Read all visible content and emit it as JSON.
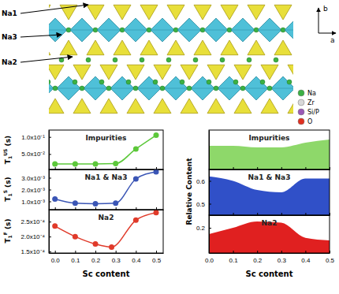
{
  "structure": {
    "labels": [
      "Na1",
      "Na3",
      "Na2"
    ],
    "legend": [
      {
        "label": "Na",
        "color": "#3cb043"
      },
      {
        "label": "Zr",
        "color": "#d8d8d8"
      },
      {
        "label": "Si/P",
        "color": "#9b59b6"
      },
      {
        "label": "O",
        "color": "#e03020"
      }
    ],
    "axes": [
      "b",
      "a"
    ]
  },
  "chart_data": [
    {
      "type": "line",
      "title": "Impurities",
      "y_label": "T1US (s)",
      "x": [
        0,
        0.1,
        0.2,
        0.3,
        0.4,
        0.5
      ],
      "values": [
        0.021,
        0.021,
        0.021,
        0.022,
        0.065,
        0.105
      ],
      "color": "#5cc83a",
      "marker": "circle",
      "xlim": [
        -0.03,
        0.535
      ],
      "ylim": [
        0.005,
        0.12
      ],
      "xticks": [
        {
          "value": 0,
          "label": "0.0"
        },
        0.1,
        0.2,
        0.3,
        0.4,
        0.5
      ],
      "yticks": [
        {
          "value": 0.05,
          "label": "5.0x10⁻²"
        },
        {
          "value": 0.1,
          "label": "1.0x10⁻¹"
        }
      ],
      "tick_labels": "y"
    },
    {
      "type": "line",
      "title": "Na1 & Na3",
      "y_label": "T1S (s)",
      "x": [
        0,
        0.1,
        0.2,
        0.3,
        0.4,
        0.5
      ],
      "values": [
        0.0012,
        0.00085,
        0.0008,
        0.00085,
        0.0029,
        0.0035
      ],
      "color": "#3a55b5",
      "marker": "circle",
      "xlim": [
        -0.03,
        0.535
      ],
      "ylim": [
        0.0003,
        0.0037
      ],
      "xticks": [
        {
          "value": 0,
          "label": "0.0"
        },
        0.1,
        0.2,
        0.3,
        0.4,
        0.5
      ],
      "yticks": [
        {
          "value": 0.001,
          "label": "1.0x10⁻³"
        },
        {
          "value": 0.002,
          "label": "2.0x10⁻³"
        },
        {
          "value": 0.003,
          "label": "3.0x10⁻³"
        }
      ],
      "tick_labels": "y"
    },
    {
      "type": "line",
      "title": "Na2",
      "y_label": "T1F (s)",
      "x_label": "Sc content",
      "x": [
        0,
        0.1,
        0.2,
        0.28,
        0.4,
        0.5
      ],
      "values": [
        0.000235,
        0.0002,
        0.000175,
        0.000165,
        0.000255,
        0.00028
      ],
      "color": "#e03a2a",
      "marker": "circle",
      "xlim": [
        -0.03,
        0.535
      ],
      "ylim": [
        0.000145,
        0.00029
      ],
      "xticks": [
        {
          "value": 0,
          "label": "0.0"
        },
        0.1,
        0.2,
        0.3,
        0.4,
        0.5
      ],
      "yticks": [
        {
          "value": 0.00015,
          "label": "1.5x10⁻⁴"
        },
        {
          "value": 0.0002,
          "label": "2.0x10⁻⁴"
        },
        {
          "value": 0.00025,
          "label": "2.5x10⁻⁴"
        }
      ]
    },
    {
      "type": "area",
      "title": "Impurities",
      "x": [
        0,
        0.1,
        0.2,
        0.3,
        0.4,
        0.5
      ],
      "values": [
        0.15,
        0.15,
        0.14,
        0.14,
        0.17,
        0.19
      ],
      "color": "#8ed86a",
      "xlim": [
        0,
        0.5
      ],
      "ylim": [
        0,
        0.25
      ],
      "xticks": [
        {
          "value": 0,
          "label": "0.0"
        },
        0.1,
        0.2,
        0.3,
        0.4,
        0.5
      ],
      "yticks": [],
      "tick_labels": false
    },
    {
      "type": "area",
      "title": "Na1 & Na3",
      "y_label": "Relative Content",
      "x": [
        0,
        0.1,
        0.2,
        0.3,
        0.4,
        0.5
      ],
      "values": [
        0.62,
        0.6,
        0.56,
        0.55,
        0.61,
        0.61
      ],
      "color": "#3050c8",
      "xlim": [
        0,
        0.5
      ],
      "ylim": [
        0.45,
        0.65
      ],
      "xticks": [
        {
          "value": 0,
          "label": "0.0"
        },
        0.1,
        0.2,
        0.3,
        0.4,
        0.5
      ],
      "yticks": [
        0.5,
        0.6
      ],
      "tick_labels": "y"
    },
    {
      "type": "area",
      "title": "Na2",
      "x_label": "Sc content",
      "x": [
        0,
        0.1,
        0.2,
        0.3,
        0.4,
        0.5
      ],
      "values": [
        0.15,
        0.2,
        0.25,
        0.24,
        0.12,
        0.1
      ],
      "color": "#e02020",
      "xlim": [
        0,
        0.5
      ],
      "ylim": [
        0,
        0.3
      ],
      "xticks": [
        {
          "value": 0,
          "label": "0.0"
        },
        0.1,
        0.2,
        0.3,
        0.4,
        0.5
      ],
      "yticks": [
        0.2
      ]
    }
  ]
}
